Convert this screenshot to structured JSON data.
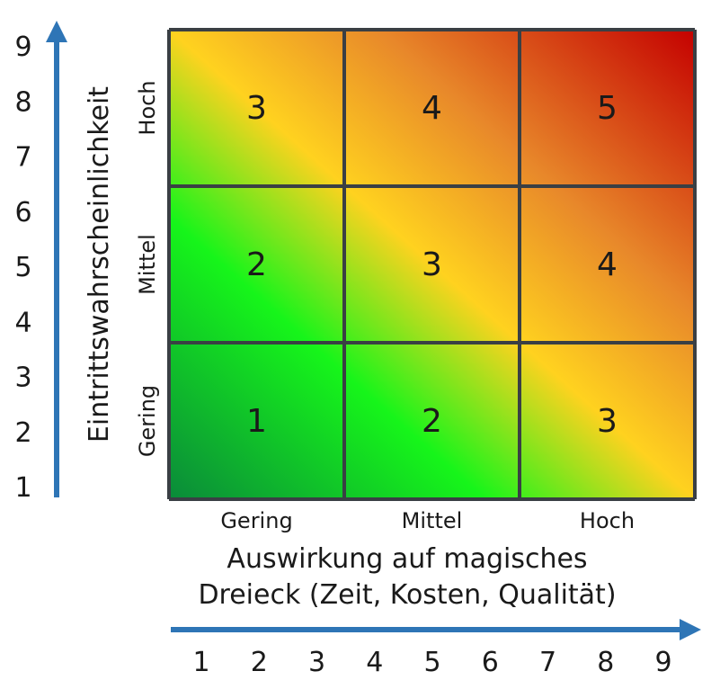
{
  "chart_data": {
    "type": "heatmap",
    "title": "",
    "x_axis": {
      "title_lines": [
        "Auswirkung auf magisches",
        "Dreieck (Zeit, Kosten, Qualität)"
      ],
      "categories": [
        "Gering",
        "Mittel",
        "Hoch"
      ],
      "scale": [
        "1",
        "2",
        "3",
        "4",
        "5",
        "6",
        "7",
        "8",
        "9"
      ]
    },
    "y_axis": {
      "title": "Eintrittswahrscheinlichkeit",
      "categories": [
        "Gering",
        "Mittel",
        "Hoch"
      ],
      "scale": [
        "1",
        "2",
        "3",
        "4",
        "5",
        "6",
        "7",
        "8",
        "9"
      ]
    },
    "cells": [
      [
        "1",
        "2",
        "3"
      ],
      [
        "2",
        "3",
        "4"
      ],
      [
        "3",
        "4",
        "5"
      ]
    ],
    "color_scale": {
      "stops": [
        "#0a8a3a",
        "#16f51a",
        "#ffd21f",
        "#e8882a",
        "#c40000"
      ]
    },
    "grid": true,
    "colors": {
      "arrow": "#2e75b6",
      "grid_line": "#3a3f44"
    }
  }
}
